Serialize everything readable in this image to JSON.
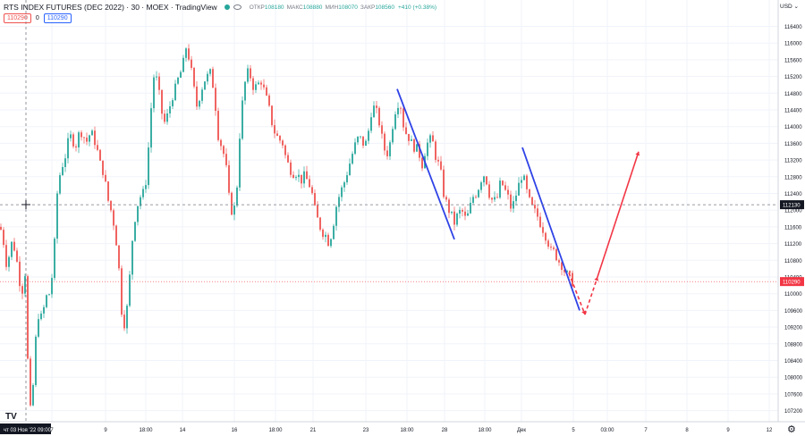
{
  "header": {
    "symbol_title": "RTS INDEX FUTURES (DEC 2022) · 30 · MOEX · TradingView",
    "open_label": "ОТКР",
    "open_value": "108180",
    "high_label": "МАКС",
    "high_value": "108880",
    "low_label": "МИН",
    "low_value": "108070",
    "close_label": "ЗАКР",
    "close_value": "108560",
    "change_value": "+410 (+0.38%)",
    "bid_price": "110290",
    "spread": "0",
    "ask_price": "110290"
  },
  "currency": "USD",
  "logo_text": "TV",
  "settings_icon": "gear-icon",
  "colors": {
    "up": "#26a69a",
    "down": "#ef5350",
    "trend_line": "#2f43e6",
    "forecast_line": "#f23645",
    "current_price_label": "#f23645",
    "crosshair_price_label": "#131722"
  },
  "chart_data": {
    "type": "candlestick",
    "y_axis": {
      "range": [
        107000,
        116800
      ],
      "tick_labels": [
        "116400",
        "116000",
        "115600",
        "115200",
        "114800",
        "114400",
        "114000",
        "113600",
        "113200",
        "112800",
        "112400",
        "112000",
        "111600",
        "111200",
        "110800",
        "110400",
        "110000",
        "109600",
        "109200",
        "108800",
        "108400",
        "108000",
        "107600",
        "107200"
      ],
      "current_price_label": "110290",
      "crosshair_price_label": "112130"
    },
    "x_axis": {
      "tick_labels": [
        "7",
        "9",
        "18:00",
        "14",
        "16",
        "18:00",
        "21",
        "23",
        "18:00",
        "28",
        "18:00",
        "Дек",
        "5",
        "03:00",
        "7",
        "8",
        "9",
        "12"
      ],
      "crosshair_time_label": "чт 03 Ноя '22   09:00"
    },
    "price_path": [
      [
        0,
        111600
      ],
      [
        3,
        111400
      ],
      [
        6,
        110900
      ],
      [
        8,
        110600
      ],
      [
        10,
        110900
      ],
      [
        14,
        111300
      ],
      [
        18,
        110900
      ],
      [
        22,
        110300
      ],
      [
        25,
        110100
      ],
      [
        28,
        110500
      ],
      [
        31,
        108400
      ],
      [
        34,
        107200
      ],
      [
        37,
        107800
      ],
      [
        40,
        108900
      ],
      [
        43,
        109500
      ],
      [
        47,
        109400
      ],
      [
        51,
        109900
      ],
      [
        55,
        110000
      ],
      [
        58,
        110400
      ],
      [
        61,
        111200
      ],
      [
        64,
        112400
      ],
      [
        68,
        113000
      ],
      [
        72,
        113200
      ],
      [
        76,
        113600
      ],
      [
        80,
        113800
      ],
      [
        84,
        113500
      ],
      [
        88,
        113800
      ],
      [
        92,
        113900
      ],
      [
        96,
        113600
      ],
      [
        100,
        113800
      ],
      [
        104,
        113800
      ],
      [
        108,
        113500
      ],
      [
        112,
        113100
      ],
      [
        116,
        112900
      ],
      [
        120,
        112300
      ],
      [
        124,
        112000
      ],
      [
        128,
        111600
      ],
      [
        132,
        110900
      ],
      [
        136,
        109600
      ],
      [
        140,
        109200
      ],
      [
        144,
        110100
      ],
      [
        148,
        111300
      ],
      [
        152,
        112000
      ],
      [
        156,
        112300
      ],
      [
        160,
        112400
      ],
      [
        164,
        112800
      ],
      [
        168,
        114200
      ],
      [
        172,
        115200
      ],
      [
        176,
        115100
      ],
      [
        180,
        114400
      ],
      [
        184,
        114100
      ],
      [
        188,
        114300
      ],
      [
        192,
        114700
      ],
      [
        196,
        114900
      ],
      [
        200,
        115200
      ],
      [
        204,
        115400
      ],
      [
        208,
        115900
      ],
      [
        212,
        115600
      ],
      [
        216,
        115000
      ],
      [
        220,
        114500
      ],
      [
        224,
        114800
      ],
      [
        228,
        115100
      ],
      [
        232,
        115200
      ],
      [
        236,
        115300
      ],
      [
        240,
        114700
      ],
      [
        244,
        113800
      ],
      [
        248,
        113500
      ],
      [
        252,
        113200
      ],
      [
        256,
        112300
      ],
      [
        260,
        111900
      ],
      [
        264,
        112200
      ],
      [
        268,
        113800
      ],
      [
        272,
        114800
      ],
      [
        276,
        115300
      ],
      [
        280,
        115200
      ],
      [
        284,
        114900
      ],
      [
        288,
        115000
      ],
      [
        292,
        115100
      ],
      [
        296,
        114800
      ],
      [
        300,
        114500
      ],
      [
        304,
        114100
      ],
      [
        308,
        113800
      ],
      [
        312,
        113700
      ],
      [
        316,
        113600
      ],
      [
        320,
        113200
      ],
      [
        324,
        113000
      ],
      [
        328,
        112900
      ],
      [
        332,
        112900
      ],
      [
        336,
        112700
      ],
      [
        340,
        112800
      ],
      [
        344,
        112700
      ],
      [
        348,
        112500
      ],
      [
        352,
        112000
      ],
      [
        356,
        111700
      ],
      [
        360,
        111500
      ],
      [
        364,
        111400
      ],
      [
        368,
        111200
      ],
      [
        372,
        111600
      ],
      [
        376,
        112100
      ],
      [
        380,
        112400
      ],
      [
        384,
        112600
      ],
      [
        388,
        112900
      ],
      [
        392,
        113200
      ],
      [
        396,
        113500
      ],
      [
        400,
        113700
      ],
      [
        404,
        113700
      ],
      [
        408,
        113500
      ],
      [
        412,
        113900
      ],
      [
        416,
        114500
      ],
      [
        420,
        114400
      ],
      [
        424,
        114100
      ],
      [
        428,
        113600
      ],
      [
        432,
        113300
      ],
      [
        436,
        113600
      ],
      [
        440,
        114200
      ],
      [
        444,
        114600
      ],
      [
        448,
        114500
      ],
      [
        452,
        113900
      ],
      [
        456,
        113800
      ],
      [
        460,
        113600
      ],
      [
        464,
        113500
      ],
      [
        468,
        113400
      ],
      [
        472,
        113100
      ],
      [
        476,
        113500
      ],
      [
        480,
        113700
      ],
      [
        484,
        113600
      ],
      [
        488,
        113200
      ],
      [
        492,
        113000
      ],
      [
        496,
        112400
      ],
      [
        500,
        112100
      ],
      [
        504,
        111900
      ],
      [
        508,
        111700
      ],
      [
        512,
        111900
      ],
      [
        516,
        112000
      ],
      [
        520,
        111800
      ],
      [
        524,
        111900
      ],
      [
        528,
        112300
      ],
      [
        532,
        112400
      ],
      [
        536,
        112600
      ],
      [
        540,
        112900
      ],
      [
        544,
        112700
      ],
      [
        548,
        112300
      ],
      [
        552,
        112200
      ],
      [
        556,
        112300
      ],
      [
        560,
        112700
      ],
      [
        564,
        112500
      ],
      [
        568,
        112300
      ],
      [
        572,
        112000
      ],
      [
        576,
        112300
      ],
      [
        580,
        112600
      ],
      [
        584,
        112900
      ],
      [
        588,
        112500
      ],
      [
        592,
        112200
      ],
      [
        596,
        112000
      ],
      [
        600,
        111900
      ],
      [
        604,
        111700
      ],
      [
        608,
        111500
      ],
      [
        612,
        111300
      ],
      [
        616,
        111000
      ],
      [
        620,
        111000
      ],
      [
        624,
        110800
      ],
      [
        628,
        110700
      ],
      [
        632,
        110500
      ],
      [
        636,
        110400
      ],
      [
        640,
        110290
      ]
    ],
    "trend_lines": [
      {
        "from": [
          444,
          114900
        ],
        "to": [
          508,
          111300
        ]
      },
      {
        "from": [
          584,
          113500
        ],
        "to": [
          648,
          109600
        ]
      }
    ],
    "forecast_path": [
      [
        636,
        110500
      ],
      [
        654,
        109500
      ],
      [
        668,
        110400
      ],
      [
        714,
        113400
      ]
    ]
  }
}
